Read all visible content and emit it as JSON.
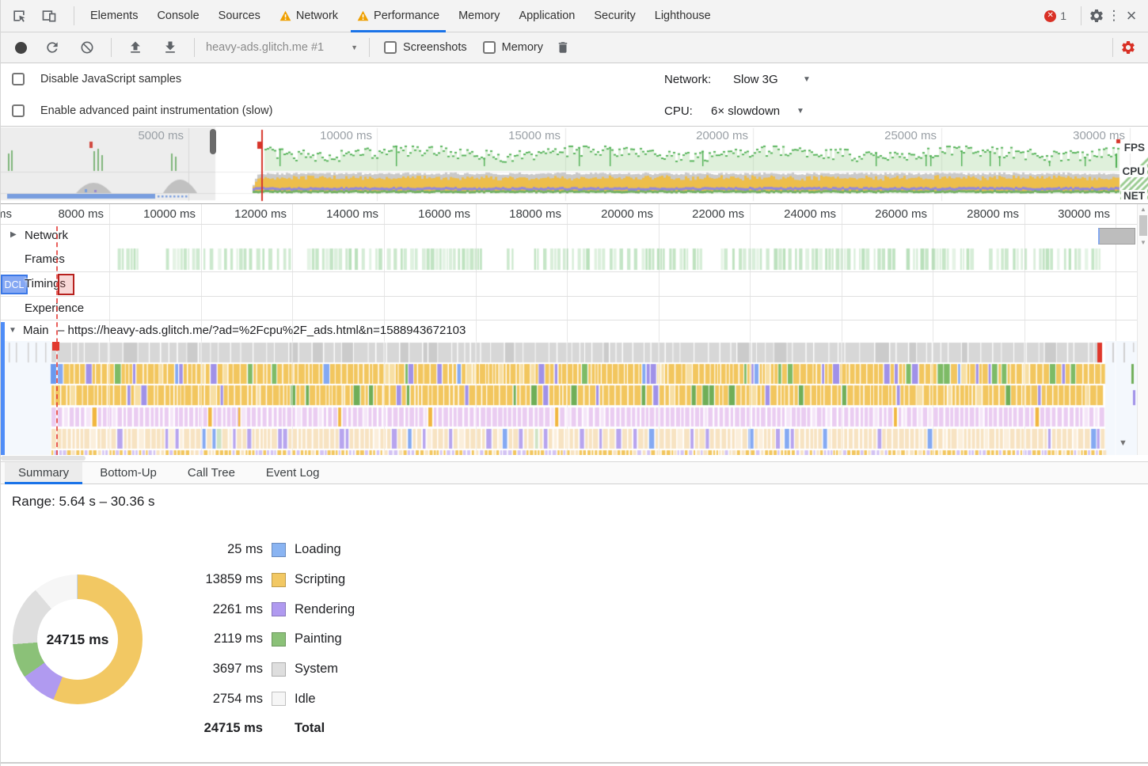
{
  "tabs": {
    "items": [
      {
        "label": "Elements",
        "warning": false,
        "active": false
      },
      {
        "label": "Console",
        "warning": false,
        "active": false
      },
      {
        "label": "Sources",
        "warning": false,
        "active": false
      },
      {
        "label": "Network",
        "warning": true,
        "active": false
      },
      {
        "label": "Performance",
        "warning": true,
        "active": true
      },
      {
        "label": "Memory",
        "warning": false,
        "active": false
      },
      {
        "label": "Application",
        "warning": false,
        "active": false
      },
      {
        "label": "Security",
        "warning": false,
        "active": false
      },
      {
        "label": "Lighthouse",
        "warning": false,
        "active": false
      }
    ],
    "error_count": "1"
  },
  "toolbar": {
    "profile_name": "heavy-ads.glitch.me #1",
    "screenshots_label": "Screenshots",
    "memory_label": "Memory"
  },
  "settings": {
    "disable_js_label": "Disable JavaScript samples",
    "paint_label": "Enable advanced paint instrumentation (slow)",
    "network_label": "Network:",
    "network_value": "Slow 3G",
    "cpu_label": "CPU:",
    "cpu_value": "6× slowdown"
  },
  "overview": {
    "time_labels": [
      "5000 ms",
      "10000 ms",
      "15000 ms",
      "20000 ms",
      "25000 ms",
      "30000 ms"
    ],
    "fps_label": "FPS",
    "cpu_label": "CPU",
    "net_label": "NET"
  },
  "ruler": {
    "clipped_label": "ms",
    "time_labels": [
      "8000 ms",
      "10000 ms",
      "12000 ms",
      "14000 ms",
      "16000 ms",
      "18000 ms",
      "20000 ms",
      "22000 ms",
      "24000 ms",
      "26000 ms",
      "28000 ms",
      "30000 ms"
    ]
  },
  "tracks": {
    "network_label": "Network",
    "frames_label": "Frames",
    "timings_label": "Timings",
    "timings_badge": "DCL",
    "experience_label": "Experience",
    "main_label": "Main",
    "main_url": "– https://heavy-ads.glitch.me/?ad=%2Fcpu%2F_ads.html&n=1588943672103"
  },
  "bottom_tabs": [
    "Summary",
    "Bottom-Up",
    "Call Tree",
    "Event Log"
  ],
  "summary": {
    "range": "Range: 5.64 s – 30.36 s",
    "donut_center": "24715 ms",
    "legend": [
      {
        "value": "25 ms",
        "label": "Loading"
      },
      {
        "value": "13859 ms",
        "label": "Scripting"
      },
      {
        "value": "2261 ms",
        "label": "Rendering"
      },
      {
        "value": "2119 ms",
        "label": "Painting"
      },
      {
        "value": "3697 ms",
        "label": "System"
      },
      {
        "value": "2754 ms",
        "label": "Idle"
      }
    ],
    "total": {
      "value": "24715 ms",
      "label": "Total"
    }
  },
  "chart_data": {
    "type": "pie",
    "title": "Performance summary donut",
    "center_label": "24715 ms",
    "total_ms": 24715,
    "slices": [
      {
        "label": "Loading",
        "value_ms": 25,
        "color": "#8ab4f2"
      },
      {
        "label": "Scripting",
        "value_ms": 13859,
        "color": "#f2c863"
      },
      {
        "label": "Rendering",
        "value_ms": 2261,
        "color": "#b09af0"
      },
      {
        "label": "Painting",
        "value_ms": 2119,
        "color": "#8bc178"
      },
      {
        "label": "System",
        "value_ms": 3697,
        "color": "#dedede"
      },
      {
        "label": "Idle",
        "value_ms": 2754,
        "color": "#f6f6f6"
      }
    ],
    "draw_order_from_top_clockwise": [
      "Scripting",
      "Rendering",
      "Painting",
      "System",
      "Idle",
      "Loading"
    ]
  },
  "colors": {
    "accent": "#1a73e8",
    "warning": "#efa000",
    "error": "#d93025",
    "capture_settings_gear": "#d93025",
    "overview_cpu": "#edbe4b",
    "overview_fps": "#4caf50",
    "overview_net": "#7ba6f0",
    "flame_scripting": "#f2c65e",
    "flame_painting": "#7dbb66",
    "flame_rendering": "#a091e8",
    "flame_loading": "#6a99ee",
    "flame_task_gray": "#d7d7d7"
  }
}
